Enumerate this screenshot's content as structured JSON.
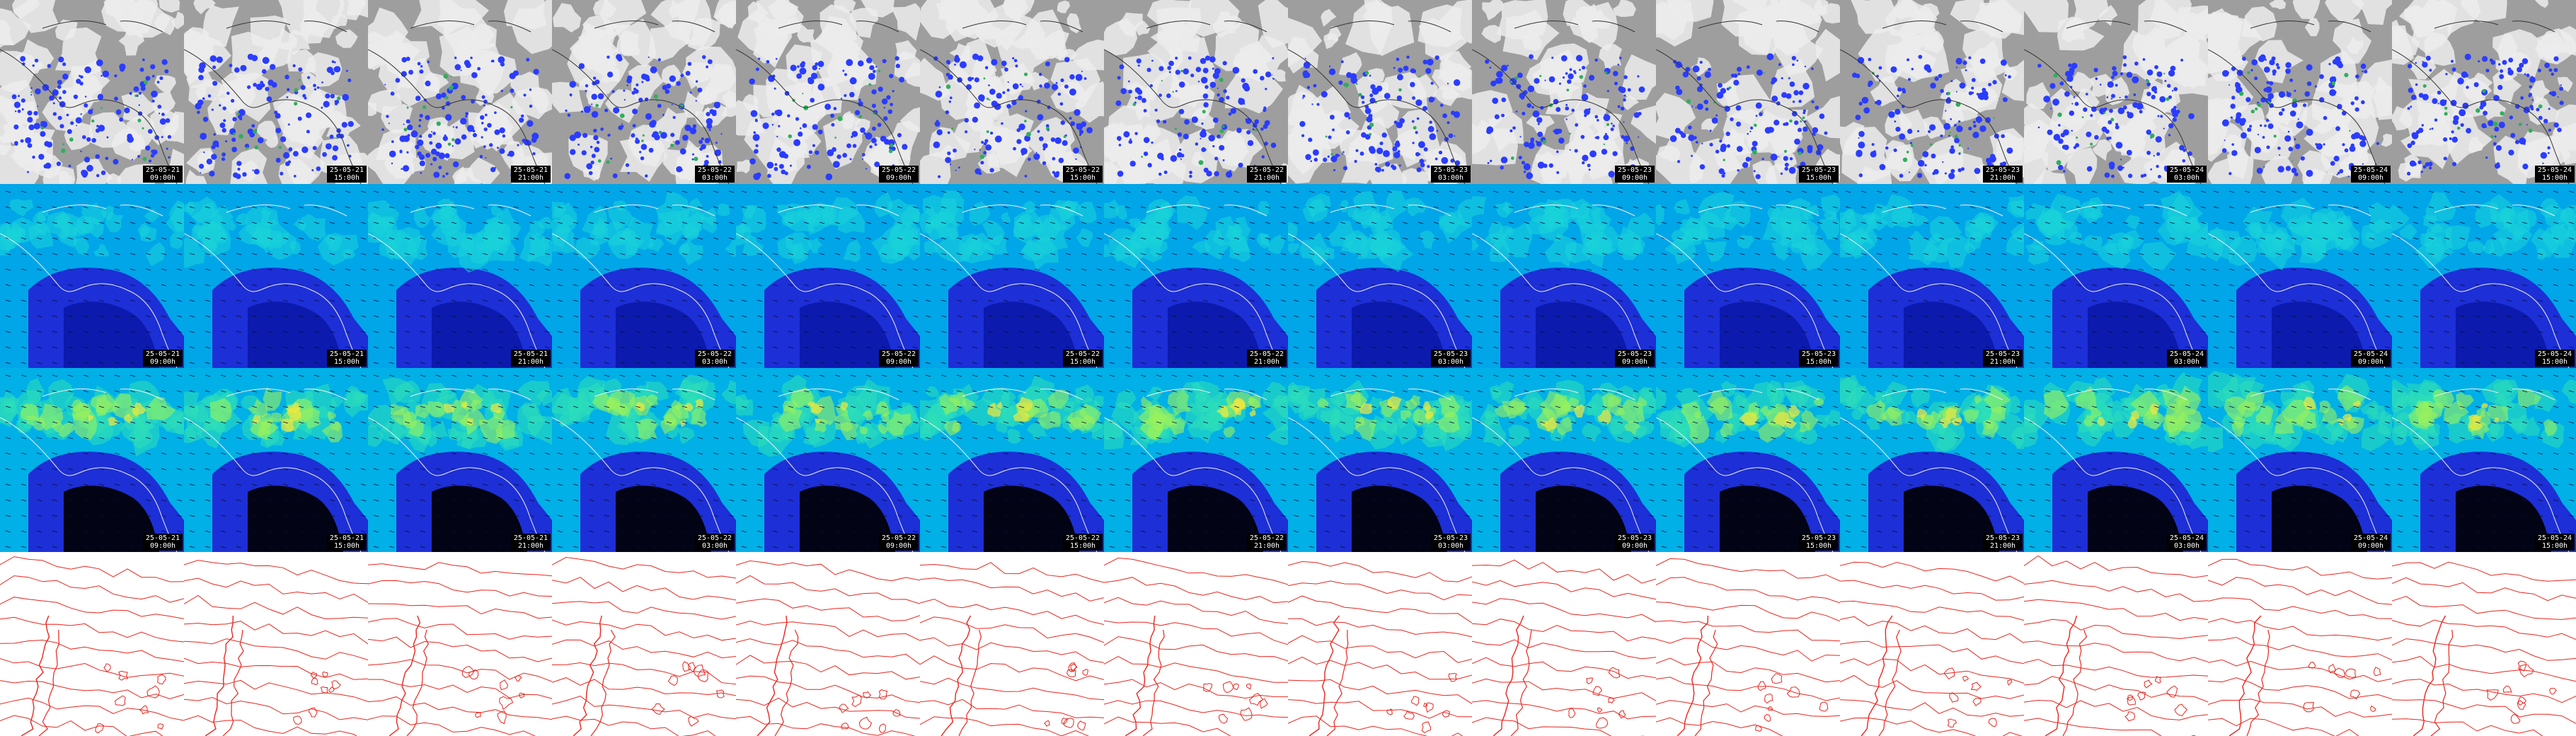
{
  "rows": [
    {
      "id": "satellite-precip",
      "palette": {
        "base": "#9e9e9e",
        "cloud": "#ececec",
        "rain": "#2a3cff",
        "heavy": "#2fae5b",
        "coast": "#333333"
      }
    },
    {
      "id": "wind-speed-low",
      "palette": {
        "base": "#00a6e8",
        "mid": "#19d3d9",
        "low": "#1d2fd6",
        "deep": "#0b1aa8",
        "coast": "#f0f0f0",
        "arrow": "#0a0a3a"
      }
    },
    {
      "id": "wind-speed-high",
      "palette": {
        "base": "#00b0e6",
        "mid": "#2de0b8",
        "high": "#9bf25a",
        "peak": "#f2e83c",
        "low": "#1d2fd6",
        "coast": "#f0f0f0",
        "arrow": "#0a0a3a"
      }
    },
    {
      "id": "contours",
      "palette": {
        "line": "#e8261f",
        "bg": "#ffffff"
      }
    }
  ],
  "frames": [
    {
      "date": "25-05-21",
      "time": "09:00h"
    },
    {
      "date": "25-05-21",
      "time": "15:00h"
    },
    {
      "date": "25-05-21",
      "time": "21:00h"
    },
    {
      "date": "25-05-22",
      "time": "03:00h"
    },
    {
      "date": "25-05-22",
      "time": "09:00h"
    },
    {
      "date": "25-05-22",
      "time": "15:00h"
    },
    {
      "date": "25-05-22",
      "time": "21:00h"
    },
    {
      "date": "25-05-23",
      "time": "03:00h"
    },
    {
      "date": "25-05-23",
      "time": "09:00h"
    },
    {
      "date": "25-05-23",
      "time": "15:00h"
    },
    {
      "date": "25-05-23",
      "time": "21:00h"
    },
    {
      "date": "25-05-24",
      "time": "03:00h"
    },
    {
      "date": "25-05-24",
      "time": "09:00h"
    },
    {
      "date": "25-05-24",
      "time": "15:00h"
    }
  ],
  "stamped_rows": [
    "satellite-precip",
    "wind-speed-low",
    "wind-speed-high"
  ]
}
